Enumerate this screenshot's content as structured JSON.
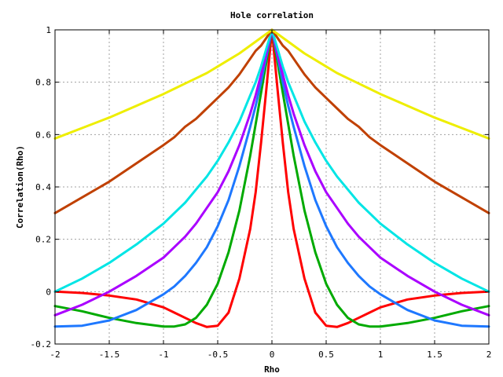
{
  "chart_data": {
    "type": "line",
    "title": "Hole correlation",
    "xlabel": "Rho",
    "ylabel": "Correlation(Rho)",
    "xlim": [
      -2,
      2
    ],
    "ylim": [
      -0.2,
      1
    ],
    "grid": true,
    "x_ticks": [
      -2,
      -1.5,
      -1,
      -0.5,
      0,
      0.5,
      1,
      1.5,
      2
    ],
    "x_tick_labels": [
      "-2",
      "-1.5",
      "-1",
      "-0.5",
      "0",
      "0.5",
      "1",
      "1.5",
      "2"
    ],
    "y_ticks": [
      -0.2,
      0,
      0.2,
      0.4,
      0.6,
      0.8,
      1
    ],
    "y_tick_labels": [
      "-0.2",
      "0",
      "0.2",
      "0.4",
      "0.6",
      "0.8",
      "1"
    ],
    "x": [
      -2,
      -1.75,
      -1.5,
      -1.25,
      -1,
      -0.9,
      -0.8,
      -0.7,
      -0.6,
      -0.5,
      -0.4,
      -0.3,
      -0.2,
      -0.15,
      -0.1,
      -0.05,
      0,
      0.05,
      0.1,
      0.15,
      0.2,
      0.3,
      0.4,
      0.5,
      0.6,
      0.7,
      0.8,
      0.9,
      1,
      1.25,
      1.5,
      1.75,
      2
    ],
    "series": [
      {
        "color": "#ff0000",
        "values": [
          0.0,
          -0.005,
          -0.015,
          -0.03,
          -0.06,
          -0.08,
          -0.1,
          -0.12,
          -0.135,
          -0.13,
          -0.08,
          0.05,
          0.24,
          0.38,
          0.57,
          0.78,
          1.0,
          0.78,
          0.57,
          0.38,
          0.24,
          0.05,
          -0.08,
          -0.13,
          -0.135,
          -0.12,
          -0.1,
          -0.08,
          -0.06,
          -0.03,
          -0.015,
          -0.005,
          0.0
        ]
      },
      {
        "color": "#00aa00",
        "values": [
          -0.055,
          -0.075,
          -0.1,
          -0.12,
          -0.133,
          -0.133,
          -0.125,
          -0.1,
          -0.05,
          0.03,
          0.15,
          0.31,
          0.52,
          0.64,
          0.76,
          0.88,
          1.0,
          0.88,
          0.76,
          0.64,
          0.52,
          0.31,
          0.15,
          0.03,
          -0.05,
          -0.1,
          -0.125,
          -0.133,
          -0.133,
          -0.12,
          -0.1,
          -0.075,
          -0.055
        ]
      },
      {
        "color": "#1e78ff",
        "values": [
          -0.133,
          -0.13,
          -0.11,
          -0.07,
          -0.01,
          0.02,
          0.06,
          0.11,
          0.17,
          0.25,
          0.35,
          0.48,
          0.63,
          0.71,
          0.8,
          0.9,
          1.0,
          0.9,
          0.8,
          0.71,
          0.63,
          0.48,
          0.35,
          0.25,
          0.17,
          0.11,
          0.06,
          0.02,
          -0.01,
          -0.07,
          -0.11,
          -0.13,
          -0.133
        ]
      },
      {
        "color": "#aa00ff",
        "values": [
          -0.09,
          -0.05,
          0.0,
          0.06,
          0.13,
          0.17,
          0.21,
          0.26,
          0.32,
          0.38,
          0.46,
          0.56,
          0.68,
          0.75,
          0.83,
          0.91,
          1.0,
          0.91,
          0.83,
          0.75,
          0.68,
          0.56,
          0.46,
          0.38,
          0.32,
          0.26,
          0.21,
          0.17,
          0.13,
          0.06,
          0.0,
          -0.05,
          -0.09
        ]
      },
      {
        "color": "#00e5e5",
        "values": [
          0.0,
          0.05,
          0.11,
          0.18,
          0.26,
          0.3,
          0.34,
          0.39,
          0.44,
          0.5,
          0.57,
          0.65,
          0.75,
          0.8,
          0.86,
          0.93,
          1.0,
          0.93,
          0.86,
          0.8,
          0.75,
          0.65,
          0.57,
          0.5,
          0.44,
          0.39,
          0.34,
          0.3,
          0.26,
          0.18,
          0.11,
          0.05,
          0.0
        ]
      },
      {
        "color": "#c04000",
        "values": [
          0.3,
          0.36,
          0.42,
          0.49,
          0.56,
          0.59,
          0.63,
          0.66,
          0.7,
          0.74,
          0.78,
          0.83,
          0.89,
          0.92,
          0.94,
          0.97,
          1.0,
          0.97,
          0.94,
          0.92,
          0.89,
          0.83,
          0.78,
          0.74,
          0.7,
          0.66,
          0.63,
          0.59,
          0.56,
          0.49,
          0.42,
          0.36,
          0.3
        ]
      },
      {
        "color": "#eeee00",
        "values": [
          0.585,
          0.625,
          0.665,
          0.71,
          0.755,
          0.775,
          0.795,
          0.815,
          0.835,
          0.86,
          0.885,
          0.91,
          0.94,
          0.955,
          0.97,
          0.985,
          1.0,
          0.985,
          0.97,
          0.955,
          0.94,
          0.91,
          0.885,
          0.86,
          0.835,
          0.815,
          0.795,
          0.775,
          0.755,
          0.71,
          0.665,
          0.625,
          0.585
        ]
      }
    ]
  }
}
